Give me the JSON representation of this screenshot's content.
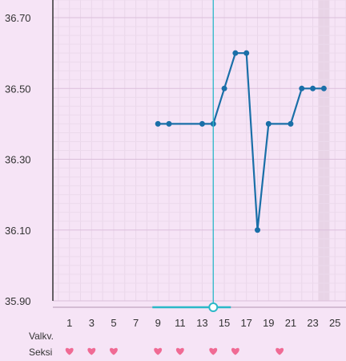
{
  "colors": {
    "background": "#f6e4f6",
    "line": "#1a6fa8",
    "cursor": "#2bb8c8",
    "heart": "#f06a94",
    "highlight": "#e8d4e6"
  },
  "rows": {
    "valkv_label": "Valkv.",
    "seksi_label": "Seksi",
    "heart_icon": "heart-icon",
    "seksi_days": [
      1,
      3,
      5,
      9,
      11,
      14,
      16,
      20
    ]
  },
  "cursor": {
    "day": 14
  },
  "highlight_day": 24,
  "chart_data": {
    "type": "line",
    "title": "",
    "xlabel": "",
    "ylabel": "",
    "xlim": [
      -0.5,
      26
    ],
    "ylim": [
      35.9,
      36.75
    ],
    "grid": true,
    "y_ticks": [
      "35.90",
      "36.10",
      "36.30",
      "36.50",
      "36.70"
    ],
    "x_ticks": [
      1,
      3,
      5,
      7,
      9,
      11,
      13,
      15,
      17,
      19,
      21,
      23,
      25
    ],
    "series": [
      {
        "x": [
          9,
          10,
          13,
          14,
          15,
          16,
          17,
          18,
          19,
          21,
          22,
          23,
          24
        ],
        "y": [
          36.4,
          36.4,
          36.4,
          36.4,
          36.5,
          36.6,
          36.6,
          36.1,
          36.4,
          36.4,
          36.5,
          36.5,
          36.5
        ]
      }
    ]
  }
}
